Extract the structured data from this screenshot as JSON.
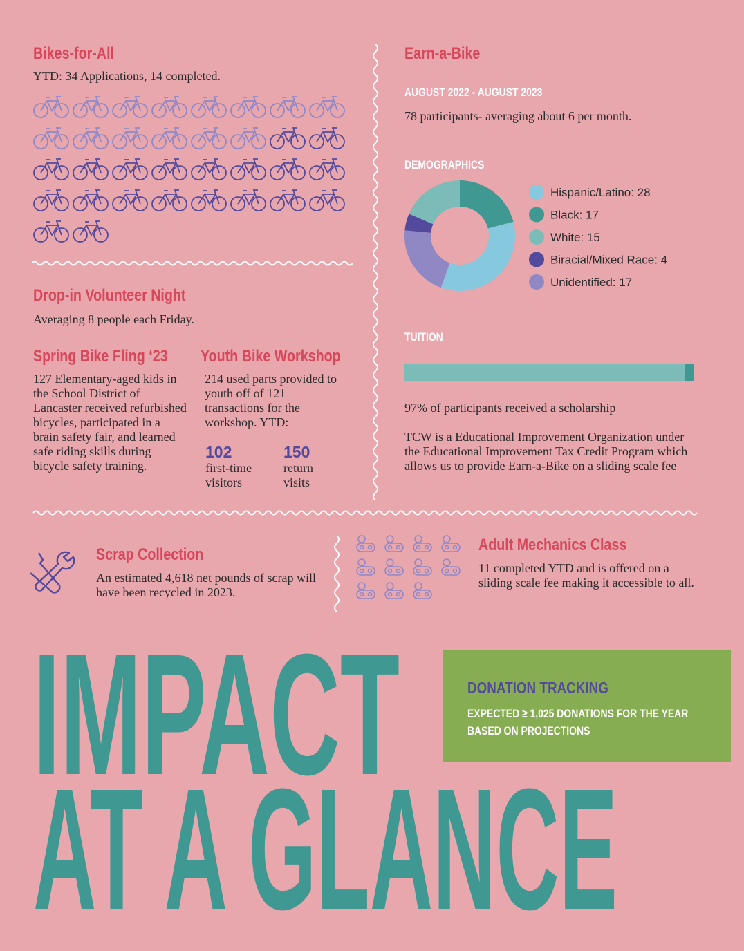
{
  "bikes_for_all": {
    "title": "Bikes-for-All",
    "text": "YTD: 34 Applications, 14 completed.",
    "applications": 34,
    "completed": 14
  },
  "volunteer_night": {
    "title": "Drop-in Volunteer Night",
    "text": "Averaging 8 people each Friday."
  },
  "spring_fling": {
    "title": "Spring Bike Fling ‘23",
    "text": "127 Elementary-aged kids in the School District of Lancaster received refurbished bicycles, participated in a brain safety fair, and learned safe riding skills during bicycle safety training."
  },
  "youth_workshop": {
    "title": "Youth Bike Workshop",
    "text": "214 used parts provided to youth off of 121 transactions for the workshop. YTD:",
    "stats": [
      {
        "value": 102,
        "label": "first-time visitors"
      },
      {
        "value": 150,
        "label": "return visits"
      }
    ]
  },
  "earn_a_bike": {
    "title": "Earn-a-Bike",
    "period": "AUGUST 2022 - AUGUST 2023",
    "text": "78 participants- averaging about 6 per month."
  },
  "demographics": {
    "title": "DEMOGRAPHICS",
    "type": "pie",
    "labels": [
      "Hispanic/Latino: 28",
      "Black: 17",
      "White: 15",
      "Biracial/Mixed Race: 4",
      "Unidentified: 17"
    ],
    "values": [
      28,
      17,
      15,
      4,
      17
    ],
    "colors": [
      "#86c8de",
      "#3f9891",
      "#7bbcb8",
      "#544a9d",
      "#8f88c5"
    ]
  },
  "tuition": {
    "title": "TUITION",
    "scholarship_percent": 97,
    "colors": [
      "#7bbcb8",
      "#3f9891"
    ],
    "text": "97% of participants received a scholarship",
    "note": "TCW is a Educational Improvement Organization under the Educational Improvement Tax Credit Program which allows us to provide Earn-a-Bike on a sliding scale fee"
  },
  "scrap": {
    "title": "Scrap Collection",
    "text": "An estimated 4,618 net pounds of scrap will have been recycled in 2023."
  },
  "mechanics": {
    "title": "Adult Mechanics Class",
    "completed": 11,
    "text": "11 completed YTD and is offered on a sliding scale fee making it accessible to all."
  },
  "donation": {
    "title": "DONATION TRACKING",
    "text": "EXPECTED ≥ 1,025 DONATIONS FOR THE YEAR BASED ON PROJECTIONS"
  },
  "headline": [
    "IMPACT",
    "AT A GLANCE"
  ]
}
